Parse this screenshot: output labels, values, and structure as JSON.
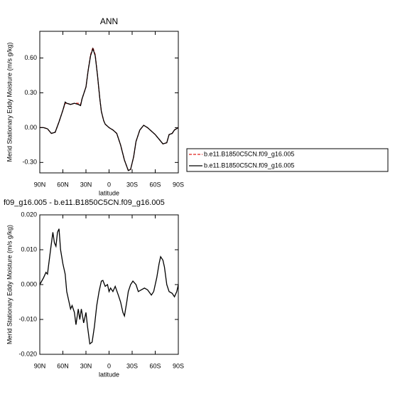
{
  "chart_data": [
    {
      "type": "line",
      "title": "ANN",
      "xlabel": "latitude",
      "ylabel": "Merid Stationary Eddy Moisture (m/s g/kg)",
      "xlim": [
        90,
        -90
      ],
      "ylim": [
        -0.39,
        0.83
      ],
      "xticks": [
        {
          "value": 90,
          "label": "90N"
        },
        {
          "value": 60,
          "label": "60N"
        },
        {
          "value": 30,
          "label": "30N"
        },
        0,
        {
          "value": -30,
          "label": "30S"
        },
        {
          "value": -60,
          "label": "60S"
        },
        {
          "value": -90,
          "label": "90S"
        }
      ],
      "yticks": [
        {
          "value": 0.6,
          "label": "0.60"
        },
        {
          "value": 0.3,
          "label": "0.30"
        },
        {
          "value": 0,
          "label": "0.00"
        },
        {
          "value": -0.3,
          "label": "-0.30"
        }
      ],
      "legend": "right",
      "x": [
        90,
        85,
        80,
        75,
        70,
        65,
        60,
        57,
        55,
        50,
        45,
        40,
        37,
        35,
        30,
        27,
        24,
        21,
        18,
        15,
        12,
        10,
        7,
        5,
        0,
        -5,
        -10,
        -15,
        -20,
        -25,
        -28,
        -32,
        -35,
        -40,
        -45,
        -50,
        -55,
        -60,
        -65,
        -70,
        -75,
        -78,
        -82,
        -85,
        -90
      ],
      "series": [
        {
          "name": "b.e11.B1850C5CN.f09_g16.005",
          "color": "#e0201c",
          "dash": true,
          "values": [
            0,
            0,
            -0.01,
            -0.05,
            -0.04,
            0.05,
            0.15,
            0.21,
            0.21,
            0.2,
            0.21,
            0.21,
            0.2,
            0.25,
            0.35,
            0.5,
            0.63,
            0.69,
            0.63,
            0.45,
            0.25,
            0.14,
            0.06,
            0.03,
            0,
            -0.02,
            -0.05,
            -0.15,
            -0.28,
            -0.37,
            -0.36,
            -0.25,
            -0.12,
            -0.02,
            0.02,
            0,
            -0.03,
            -0.06,
            -0.1,
            -0.14,
            -0.13,
            -0.06,
            -0.05,
            -0.02,
            0
          ]
        },
        {
          "name": "b.e11.B1850C5CN.f09_g16.005",
          "color": "#000000",
          "dash": false,
          "values": [
            0,
            0,
            -0.01,
            -0.05,
            -0.04,
            0.05,
            0.15,
            0.22,
            0.21,
            0.2,
            0.21,
            0.2,
            0.19,
            0.25,
            0.35,
            0.5,
            0.62,
            0.68,
            0.62,
            0.45,
            0.25,
            0.14,
            0.06,
            0.03,
            0,
            -0.02,
            -0.05,
            -0.15,
            -0.28,
            -0.37,
            -0.36,
            -0.25,
            -0.12,
            -0.02,
            0.02,
            0,
            -0.03,
            -0.06,
            -0.1,
            -0.14,
            -0.13,
            -0.06,
            -0.05,
            -0.02,
            0
          ]
        }
      ]
    },
    {
      "type": "line",
      "title": "f09_g16.005 - b.e11.B1850C5CN.f09_g16.005",
      "xlabel": "latitude",
      "ylabel": "Merid Stationary Eddy Moisture (m/s g/kg)",
      "xlim": [
        90,
        -90
      ],
      "ylim": [
        -0.02,
        0.02
      ],
      "xticks": [
        {
          "value": 90,
          "label": "90N"
        },
        {
          "value": 60,
          "label": "60N"
        },
        {
          "value": 30,
          "label": "30N"
        },
        0,
        {
          "value": -30,
          "label": "30S"
        },
        {
          "value": -60,
          "label": "60S"
        },
        {
          "value": -90,
          "label": "90S"
        }
      ],
      "yticks": [
        {
          "value": 0.02,
          "label": "0.020"
        },
        {
          "value": 0.01,
          "label": "0.010"
        },
        {
          "value": 0,
          "label": "0.000"
        },
        {
          "value": -0.01,
          "label": "-0.010"
        },
        {
          "value": -0.02,
          "label": "-0.020"
        }
      ],
      "x": [
        90,
        85,
        82,
        80,
        76,
        73,
        71,
        69,
        67,
        65,
        63,
        60,
        57,
        55,
        52,
        50,
        48,
        45,
        43,
        40,
        38,
        36,
        33,
        30,
        28,
        25,
        22,
        19,
        16,
        13,
        10,
        8,
        5,
        2,
        0,
        -2,
        -5,
        -8,
        -12,
        -15,
        -18,
        -20,
        -23,
        -25,
        -28,
        -31,
        -35,
        -38,
        -42,
        -46,
        -50,
        -55,
        -58,
        -62,
        -65,
        -67,
        -70,
        -72,
        -75,
        -78,
        -82,
        -85,
        -88,
        -90
      ],
      "series": [
        {
          "color": "#000000",
          "dash": false,
          "values": [
            0,
            0.002,
            0.0035,
            0.003,
            0.01,
            0.015,
            0.012,
            0.011,
            0.015,
            0.016,
            0.01,
            0.006,
            0.003,
            -0.002,
            -0.005,
            -0.007,
            -0.006,
            -0.008,
            -0.0115,
            -0.007,
            -0.01,
            -0.007,
            -0.011,
            -0.008,
            -0.012,
            -0.017,
            -0.0165,
            -0.012,
            -0.006,
            -0.002,
            0.001,
            0.0012,
            -0.0005,
            0,
            -0.002,
            -0.001,
            -0.002,
            -0.0005,
            -0.003,
            -0.005,
            -0.008,
            -0.009,
            -0.005,
            -0.002,
            0,
            0.001,
            0,
            -0.002,
            -0.0015,
            -0.001,
            -0.0015,
            -0.003,
            -0.002,
            0.002,
            0.006,
            0.008,
            0.007,
            0.005,
            0,
            -0.002,
            -0.0025,
            -0.0035,
            -0.002,
            0
          ]
        }
      ]
    }
  ]
}
